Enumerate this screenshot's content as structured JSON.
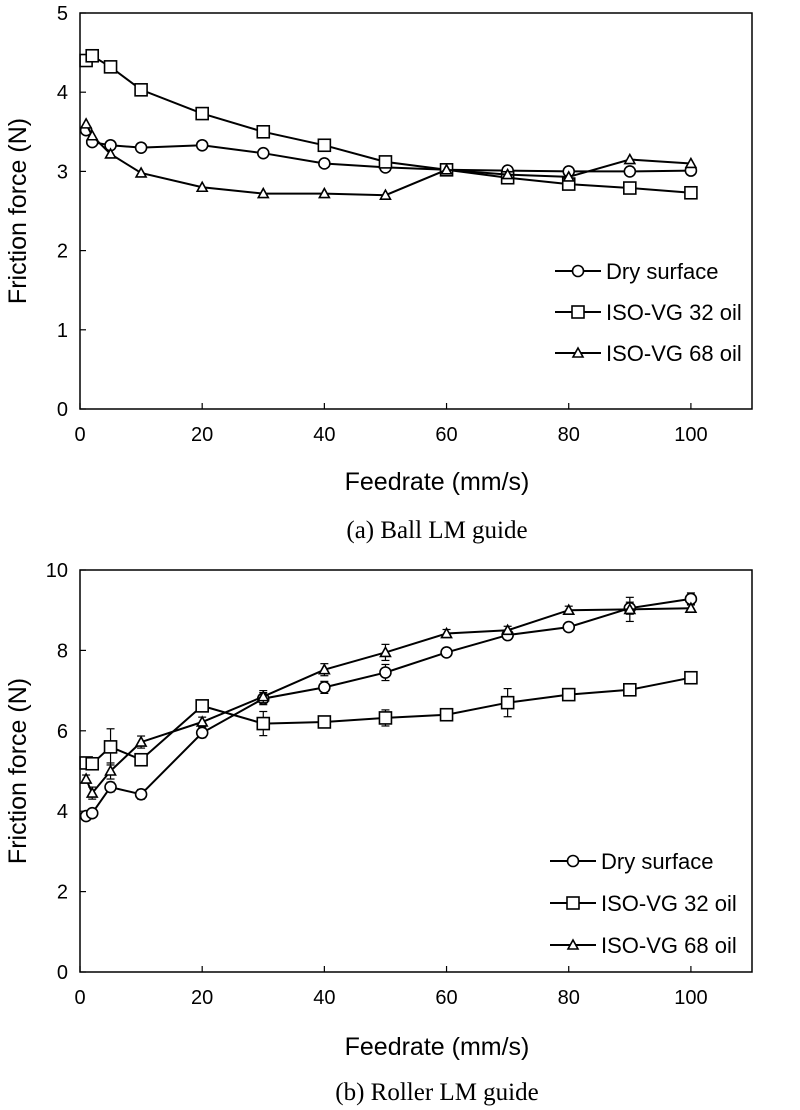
{
  "chart_data": [
    {
      "type": "line",
      "caption": "(a) Ball LM guide",
      "xlabel": "Feedrate (mm/s)",
      "ylabel": "Friction force (N)",
      "xlim": [
        0,
        110
      ],
      "ylim": [
        0,
        5
      ],
      "xticks": [
        "0",
        "20",
        "40",
        "60",
        "80",
        "100"
      ],
      "yticks": [
        "0",
        "1",
        "2",
        "3",
        "4",
        "5"
      ],
      "legend_position": "center-right",
      "series": [
        {
          "name": "Dry surface",
          "marker": "circle",
          "x": [
            1,
            2,
            5,
            10,
            20,
            30,
            40,
            50,
            60,
            70,
            80,
            90,
            100
          ],
          "y": [
            3.52,
            3.37,
            3.33,
            3.3,
            3.33,
            3.23,
            3.1,
            3.05,
            3.02,
            3.01,
            3.0,
            3.0,
            3.01
          ]
        },
        {
          "name": "ISO-VG 32 oil",
          "marker": "square",
          "x": [
            1,
            2,
            5,
            10,
            20,
            30,
            40,
            50,
            60,
            70,
            80,
            90,
            100
          ],
          "y": [
            4.4,
            4.46,
            4.32,
            4.03,
            3.73,
            3.5,
            3.33,
            3.12,
            3.02,
            2.92,
            2.84,
            2.79,
            2.73
          ]
        },
        {
          "name": "ISO-VG 68 oil",
          "marker": "triangle",
          "x": [
            1,
            2,
            5,
            10,
            20,
            30,
            40,
            50,
            60,
            70,
            80,
            90,
            100
          ],
          "y": [
            3.6,
            3.45,
            3.22,
            2.98,
            2.8,
            2.72,
            2.72,
            2.7,
            3.02,
            2.96,
            2.93,
            3.15,
            3.1
          ]
        }
      ]
    },
    {
      "type": "line",
      "caption": "(b) Roller LM guide",
      "xlabel": "Feedrate (mm/s)",
      "ylabel": "Friction force (N)",
      "xlim": [
        0,
        110
      ],
      "ylim": [
        0,
        10
      ],
      "xticks": [
        "0",
        "20",
        "40",
        "60",
        "80",
        "100"
      ],
      "yticks": [
        "0",
        "2",
        "4",
        "6",
        "8",
        "10"
      ],
      "legend_position": "bottom-right",
      "series": [
        {
          "name": "Dry surface",
          "marker": "circle",
          "x": [
            1,
            2,
            5,
            10,
            20,
            30,
            40,
            50,
            60,
            70,
            80,
            90,
            100
          ],
          "y": [
            3.88,
            3.95,
            4.6,
            4.42,
            5.95,
            6.8,
            7.08,
            7.45,
            7.95,
            8.38,
            8.58,
            9.05,
            9.28
          ],
          "err": [
            0.08,
            0.1,
            0.12,
            0.12,
            0.12,
            0.15,
            0.15,
            0.2,
            0.1,
            0.1,
            0.1,
            0.15,
            0.15
          ]
        },
        {
          "name": "ISO-VG 32 oil",
          "marker": "square",
          "x": [
            1,
            2,
            5,
            10,
            20,
            30,
            40,
            50,
            60,
            70,
            80,
            90,
            100
          ],
          "y": [
            5.2,
            5.18,
            5.6,
            5.28,
            6.62,
            6.18,
            6.22,
            6.32,
            6.4,
            6.7,
            6.9,
            7.02,
            7.32
          ],
          "err": [
            0.1,
            0.1,
            0.45,
            0.12,
            0.12,
            0.3,
            0.1,
            0.2,
            0.1,
            0.35,
            0.1,
            0.1,
            0.15
          ]
        },
        {
          "name": "ISO-VG 68 oil",
          "marker": "triangle",
          "x": [
            1,
            2,
            5,
            10,
            20,
            30,
            40,
            50,
            60,
            70,
            80,
            90,
            100
          ],
          "y": [
            4.8,
            4.45,
            5.0,
            5.72,
            6.22,
            6.85,
            7.52,
            7.95,
            8.42,
            8.5,
            9.0,
            9.02,
            9.05
          ],
          "err": [
            0.1,
            0.15,
            0.2,
            0.15,
            0.12,
            0.15,
            0.15,
            0.2,
            0.1,
            0.1,
            0.1,
            0.3,
            0.1
          ]
        }
      ]
    }
  ]
}
